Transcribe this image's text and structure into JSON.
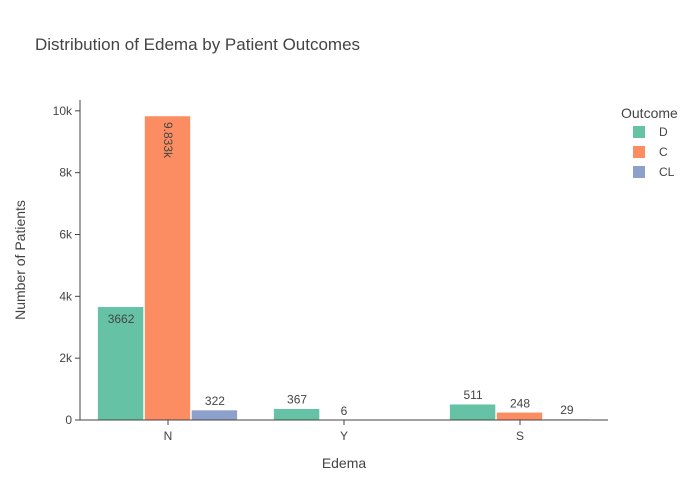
{
  "chart_data": {
    "type": "bar",
    "title": "Distribution of Edema by Patient Outcomes",
    "xlabel": "Edema",
    "ylabel": "Number of Patients",
    "categories": [
      "N",
      "Y",
      "S"
    ],
    "ylim": [
      0,
      10350
    ],
    "yticks": [
      {
        "value": 0,
        "label": "0"
      },
      {
        "value": 2000,
        "label": "2k"
      },
      {
        "value": 4000,
        "label": "4k"
      },
      {
        "value": 6000,
        "label": "6k"
      },
      {
        "value": 8000,
        "label": "8k"
      },
      {
        "value": 10000,
        "label": "10k"
      }
    ],
    "legend": {
      "title": "Outcome",
      "placement": "top-right"
    },
    "grid": false,
    "series": [
      {
        "name": "D",
        "color": "#66c2a5",
        "values": [
          3662,
          367,
          511
        ],
        "labels": [
          "3662",
          "367",
          "511"
        ]
      },
      {
        "name": "C",
        "color": "#fc8d62",
        "values": [
          9833,
          6,
          248
        ],
        "labels": [
          "9.833k",
          "6",
          "248"
        ]
      },
      {
        "name": "CL",
        "color": "#8da0cb",
        "values": [
          322,
          0,
          29
        ],
        "labels": [
          "322",
          "",
          "29"
        ]
      }
    ]
  }
}
